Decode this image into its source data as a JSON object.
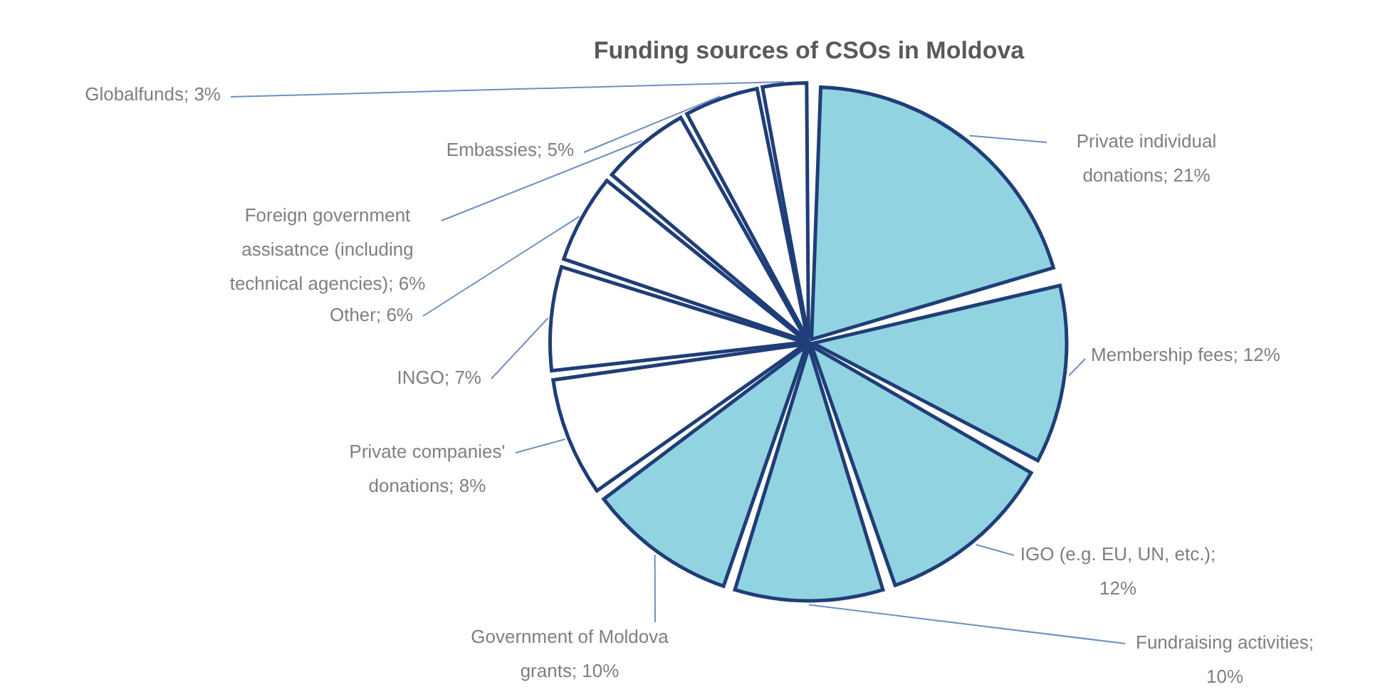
{
  "chart_data": {
    "type": "pie",
    "title": "Funding sources of CSOs in Moldova",
    "categories": [
      "Private individual donations; 21%",
      "Membership fees; 12%",
      "IGO (e.g. EU, UN, etc.); 12%",
      "Fundraising activities; 10%",
      "Government of Moldova grants; 10%",
      "Private companies' donations; 8%",
      "INGO; 7%",
      "Other; 6%",
      "Foreign government assisatnce (including technical agencies); 6%",
      "Embassies; 5%",
      "Globalfunds; 3%"
    ],
    "values": [
      21,
      12,
      12,
      10,
      10,
      8,
      7,
      6,
      6,
      5,
      3
    ],
    "colors": [
      "#92d3e1",
      "#92d3e1",
      "#92d3e1",
      "#92d3e1",
      "#92d3e1",
      "#ffffff",
      "#ffffff",
      "#ffffff",
      "#ffffff",
      "#ffffff",
      "#ffffff"
    ],
    "legend": false
  }
}
